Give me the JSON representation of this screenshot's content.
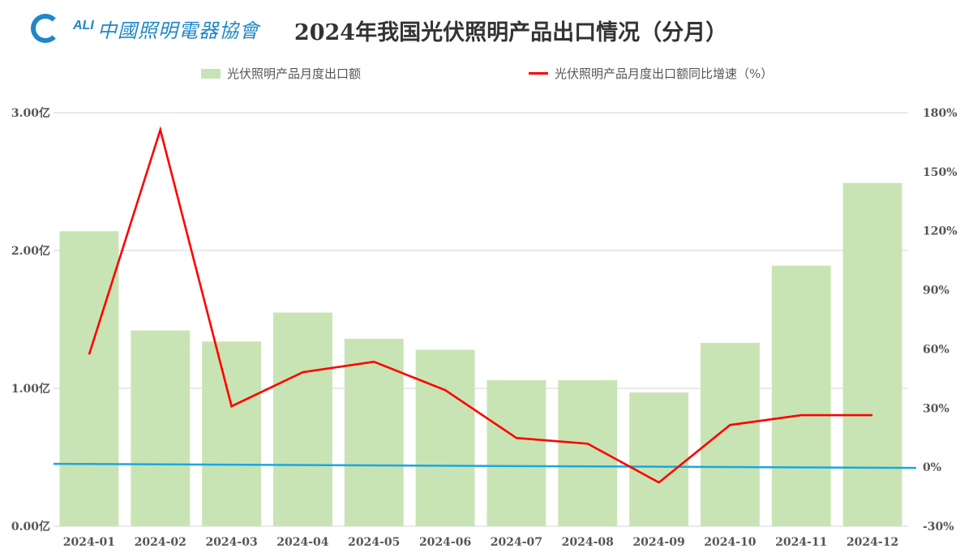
{
  "header": {
    "logo_abbr": "ALI",
    "logo_text": "中國照明電器協會",
    "title": "2024年我国光伏照明产品出口情况（分月）"
  },
  "colors": {
    "bar": "#c8e4b4",
    "line": "#ff0000",
    "zero_line": "#1aa7e0",
    "grid": "#e3e3e3",
    "axis_text": "#555555",
    "logo": "#1f86c8"
  },
  "legend": {
    "bar_label": "光伏照明产品月度出口额",
    "line_label": "光伏照明产品月度出口额同比增速（%）"
  },
  "axes": {
    "left_ticks": [
      "0.00亿",
      "1.00亿",
      "2.00亿",
      "3.00亿"
    ],
    "right_ticks": [
      "-30%",
      "0%",
      "30%",
      "60%",
      "90%",
      "120%",
      "150%",
      "180%"
    ]
  },
  "chart_data": {
    "type": "bar",
    "title": "2024年我国光伏照明产品出口情况（分月）",
    "categories": [
      "2024-01",
      "2024-02",
      "2024-03",
      "2024-04",
      "2024-05",
      "2024-06",
      "2024-07",
      "2024-08",
      "2024-09",
      "2024-10",
      "2024-11",
      "2024-12"
    ],
    "series": [
      {
        "name": "光伏照明产品月度出口额",
        "type": "bar",
        "axis": "left",
        "unit": "亿",
        "values": [
          2.14,
          1.42,
          1.34,
          1.55,
          1.36,
          1.28,
          1.06,
          1.06,
          0.97,
          1.33,
          1.89,
          2.49
        ]
      },
      {
        "name": "光伏照明产品月度出口额同比增速（%）",
        "type": "line",
        "axis": "right",
        "unit": "%",
        "values": [
          57.2,
          171.3,
          30.9,
          48.2,
          53.5,
          39.1,
          14.8,
          11.9,
          -7.8,
          21.4,
          26.4,
          26.4
        ]
      }
    ],
    "xlabel": "",
    "ylabel_left": "",
    "ylabel_right": "",
    "ylim_left": [
      0,
      3
    ],
    "ylim_right": [
      -30,
      180
    ],
    "left_tick_step": 1,
    "right_tick_step": 30,
    "grid": true,
    "legend_position": "top",
    "reference_line": {
      "axis": "right",
      "value": 0
    }
  }
}
